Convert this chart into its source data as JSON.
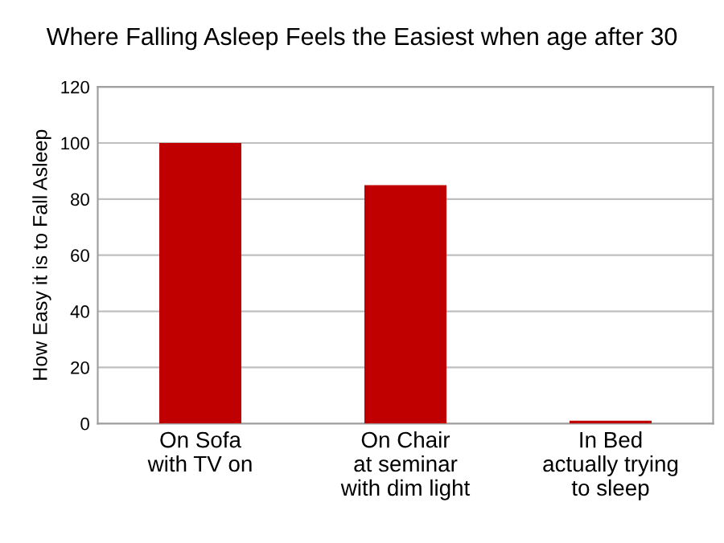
{
  "chart_data": {
    "type": "bar",
    "title": "Where Falling Asleep Feels the Easiest when age after 30",
    "ylabel": "How Easy it is to Fall Asleep",
    "categories": [
      "On Sofa\nwith TV on",
      "On Chair\nat seminar\nwith dim light",
      "In Bed\nactually trying\nto sleep"
    ],
    "values": [
      100,
      85,
      1
    ],
    "color": "#c00000",
    "ylim": [
      0,
      120
    ],
    "yticks": [
      0,
      20,
      40,
      60,
      80,
      100,
      120
    ],
    "grid": "y",
    "legend": false
  }
}
